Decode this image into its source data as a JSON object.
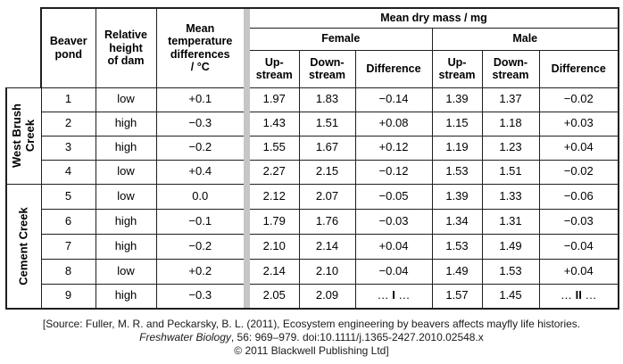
{
  "table": {
    "headers": {
      "beaver_pond": "Beaver\npond",
      "relative_height": "Relative\nheight\nof dam",
      "mean_temp": "Mean\ntemperature\ndifferences\n/ °C",
      "mean_dry_mass": "Mean dry mass / mg",
      "female": "Female",
      "male": "Male",
      "upstream": "Up-\nstream",
      "downstream": "Down-\nstream",
      "difference": "Difference"
    },
    "groups": [
      {
        "label": "West Brush\nCreek",
        "row_indices": [
          0,
          1,
          2,
          3
        ]
      },
      {
        "label": "Cement Creek",
        "row_indices": [
          4,
          5,
          6,
          7,
          8
        ]
      }
    ],
    "row_fields": [
      "pond",
      "dam_height",
      "temp_diff",
      "female_upstream",
      "female_downstream",
      "female_difference",
      "male_upstream",
      "male_downstream",
      "male_difference"
    ],
    "rows": [
      [
        "1",
        "low",
        "+0.1",
        "1.97",
        "1.83",
        "−0.14",
        "1.39",
        "1.37",
        "−0.02"
      ],
      [
        "2",
        "high",
        "−0.3",
        "1.43",
        "1.51",
        "+0.08",
        "1.15",
        "1.18",
        "+0.03"
      ],
      [
        "3",
        "high",
        "−0.2",
        "1.55",
        "1.67",
        "+0.12",
        "1.19",
        "1.23",
        "+0.04"
      ],
      [
        "4",
        "low",
        "+0.4",
        "2.27",
        "2.15",
        "−0.12",
        "1.53",
        "1.51",
        "−0.02"
      ],
      [
        "5",
        "low",
        "0.0",
        "2.12",
        "2.07",
        "−0.05",
        "1.39",
        "1.33",
        "−0.06"
      ],
      [
        "6",
        "high",
        "−0.1",
        "1.79",
        "1.76",
        "−0.03",
        "1.34",
        "1.31",
        "−0.03"
      ],
      [
        "7",
        "high",
        "−0.2",
        "2.10",
        "2.14",
        "+0.04",
        "1.53",
        "1.49",
        "−0.04"
      ],
      [
        "8",
        "low",
        "+0.2",
        "2.14",
        "2.10",
        "−0.04",
        "1.49",
        "1.53",
        "+0.04"
      ],
      [
        "9",
        "high",
        "−0.3",
        "2.05",
        "2.09",
        {
          "pre": "… ",
          "label": "I",
          "post": " …"
        },
        "1.57",
        "1.45",
        {
          "pre": "… ",
          "label": "II",
          "post": " …"
        }
      ]
    ],
    "divider_color": "#c6c6c6"
  },
  "source": {
    "line1": "[Source: Fuller, M. R. and Peckarsky, B. L. (2011), Ecosystem engineering by beavers affects mayfly life histories.",
    "line2_italic": "Freshwater Biology",
    "line2_rest": ", 56: 969–979. doi:10.1111/j.1365-2427.2010.02548.x",
    "line3": "© 2011 Blackwell Publishing Ltd]"
  }
}
